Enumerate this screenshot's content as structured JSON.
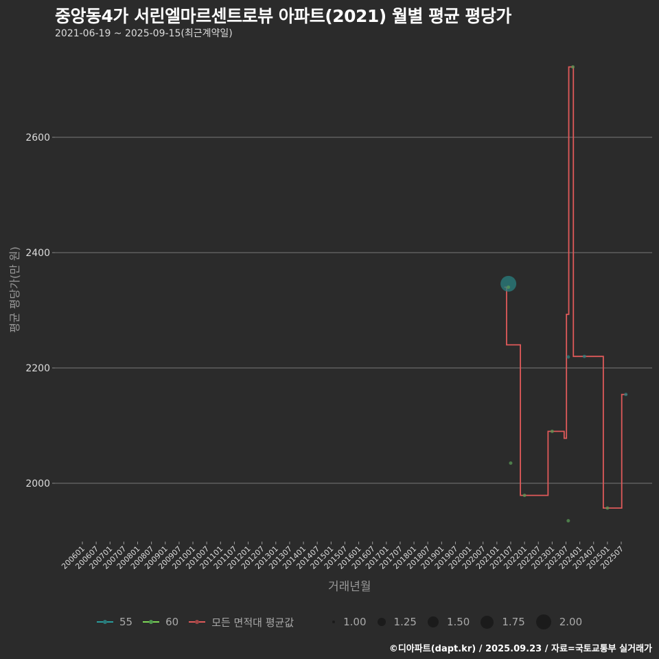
{
  "header": {
    "title": "중앙동4가 서린엘마르센트로뷰 아파트(2021) 월별 평균 평당가",
    "subtitle": "2021-06-19 ~ 2025-09-15(최근계약일)"
  },
  "axes": {
    "ylabel": "평균 평당가(만 원)",
    "xlabel": "거래년월",
    "yticks": [
      "2000",
      "2200",
      "2400",
      "2600"
    ]
  },
  "legend": {
    "series": [
      {
        "label": "55",
        "color": "#2a9d9d"
      },
      {
        "label": "60",
        "color": "#7ed957"
      },
      {
        "label": "모든 면적대 평균값",
        "color": "#e05a5a"
      }
    ],
    "sizes": [
      "1.00",
      "1.25",
      "1.50",
      "1.75",
      "2.00"
    ]
  },
  "caption": "©디아파트(dapt.kr) / 2025.09.23 / 자료=국토교통부 실거래가",
  "chart_data": {
    "type": "line",
    "title": "중앙동4가 서린엘마르센트로뷰 아파트(2021) 월별 평균 평당가",
    "subtitle": "2021-06-19 ~ 2025-09-15(최근계약일)",
    "xlabel": "거래년월",
    "ylabel": "평균 평당가(만 원)",
    "ylim": [
      1890,
      2740
    ],
    "yticks": [
      2000,
      2200,
      2400,
      2600
    ],
    "xticks": [
      "200601",
      "200607",
      "200701",
      "200707",
      "200801",
      "200807",
      "200901",
      "200907",
      "201001",
      "201007",
      "201101",
      "201107",
      "201201",
      "201207",
      "201301",
      "201307",
      "201401",
      "201407",
      "201501",
      "201507",
      "201601",
      "201607",
      "201701",
      "201707",
      "201801",
      "201807",
      "201901",
      "201907",
      "202001",
      "202007",
      "202101",
      "202107",
      "202201",
      "202207",
      "202301",
      "202307",
      "202401",
      "202407",
      "202501",
      "202507"
    ],
    "grid": true,
    "legend_position": "bottom",
    "series": [
      {
        "name": "55",
        "type": "scatter",
        "points": [
          {
            "x": "202106",
            "y": 2346,
            "size": 2.0
          },
          {
            "x": "202308",
            "y": 2219,
            "size": 1.0
          },
          {
            "x": "202403",
            "y": 2220,
            "size": 1.0
          },
          {
            "x": "202509",
            "y": 2154,
            "size": 1.0
          }
        ]
      },
      {
        "name": "60",
        "type": "scatter",
        "points": [
          {
            "x": "202106",
            "y": 2340,
            "size": 1.0
          },
          {
            "x": "202107",
            "y": 2035,
            "size": 1.0
          },
          {
            "x": "202201",
            "y": 1979,
            "size": 1.0
          },
          {
            "x": "202301",
            "y": 2090,
            "size": 1.0
          },
          {
            "x": "202308",
            "y": 1935,
            "size": 1.0
          },
          {
            "x": "202310",
            "y": 2722,
            "size": 1.0
          },
          {
            "x": "202501",
            "y": 1957,
            "size": 1.0
          }
        ]
      },
      {
        "name": "모든 면적대 평균값",
        "type": "step",
        "points": [
          {
            "x": "202106",
            "y": 2340
          },
          {
            "x": "202107",
            "y": 2240
          },
          {
            "x": "202201",
            "y": 1979
          },
          {
            "x": "202301",
            "y": 2090
          },
          {
            "x": "202308",
            "y": 2078
          },
          {
            "x": "202309",
            "y": 2293
          },
          {
            "x": "202310",
            "y": 2722
          },
          {
            "x": "202312",
            "y": 2220
          },
          {
            "x": "202501",
            "y": 1957
          },
          {
            "x": "202509",
            "y": 2154
          }
        ]
      }
    ]
  }
}
